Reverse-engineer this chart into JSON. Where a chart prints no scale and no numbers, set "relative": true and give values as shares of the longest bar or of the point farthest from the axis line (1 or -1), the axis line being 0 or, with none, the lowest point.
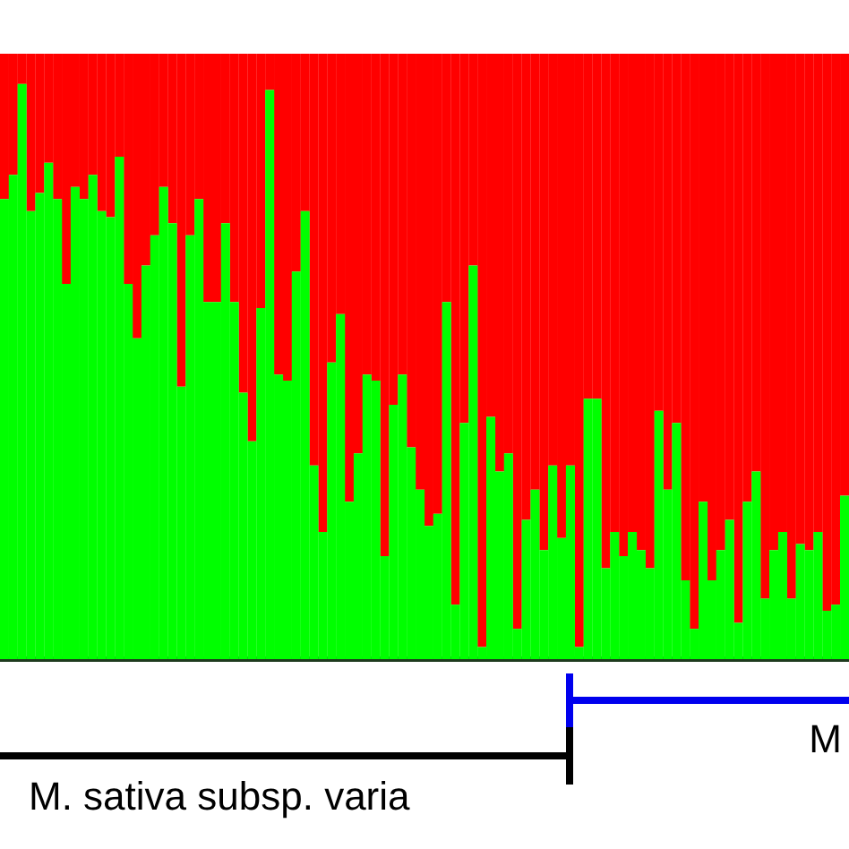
{
  "chart_data": {
    "type": "bar",
    "stacked": true,
    "relative": true,
    "tick_labels": false,
    "categories": [
      null,
      null,
      null,
      null,
      null,
      null,
      null,
      null,
      null,
      null,
      null,
      null,
      null,
      null,
      null,
      null,
      null,
      null,
      null,
      null,
      null,
      null,
      null,
      null,
      null,
      null,
      null,
      null,
      null,
      null,
      null,
      null,
      null,
      null,
      null,
      null,
      null,
      null,
      null,
      null,
      null,
      null,
      null,
      null,
      null,
      null,
      null,
      null,
      null,
      null,
      null,
      null,
      null,
      null,
      null,
      null,
      null,
      null,
      null,
      null,
      null,
      null,
      null,
      null,
      null,
      null,
      null,
      null,
      null,
      null,
      null,
      null,
      null,
      null,
      null,
      null,
      null,
      null,
      null,
      null,
      null,
      null,
      null,
      null,
      null,
      null,
      null,
      null,
      null,
      null,
      null,
      null,
      null,
      null,
      null,
      null
    ],
    "series": [
      {
        "color": "#00ff00",
        "values": [
          0.76,
          0.8,
          0.95,
          0.74,
          0.77,
          0.82,
          0.76,
          0.62,
          0.78,
          0.76,
          0.8,
          0.74,
          0.73,
          0.83,
          0.62,
          0.53,
          0.65,
          0.7,
          0.78,
          0.72,
          0.45,
          0.7,
          0.76,
          0.59,
          0.59,
          0.72,
          0.59,
          0.44,
          0.36,
          0.58,
          0.94,
          0.47,
          0.46,
          0.64,
          0.74,
          0.32,
          0.21,
          0.49,
          0.57,
          0.26,
          0.34,
          0.47,
          0.46,
          0.17,
          0.42,
          0.47,
          0.35,
          0.28,
          0.22,
          0.24,
          0.59,
          0.09,
          0.39,
          0.65,
          0.02,
          0.4,
          0.31,
          0.34,
          0.05,
          0.23,
          0.28,
          0.18,
          0.32,
          0.2,
          0.32,
          0.02,
          0.43,
          0.43,
          0.15,
          0.21,
          0.17,
          0.21,
          0.18,
          0.15,
          0.41,
          0.28,
          0.39,
          0.13,
          0.05,
          0.26,
          0.13,
          0.18,
          0.23,
          0.06,
          0.26,
          0.31,
          0.1,
          0.18,
          0.21,
          0.1,
          0.19,
          0.18,
          0.21,
          0.08,
          0.09,
          0.27
        ]
      },
      {
        "color": "#ff0000",
        "values": [
          0.24,
          0.2,
          0.05,
          0.26,
          0.23,
          0.18,
          0.24,
          0.38,
          0.22,
          0.24,
          0.2,
          0.26,
          0.27,
          0.17,
          0.38,
          0.47,
          0.35,
          0.3,
          0.22,
          0.28,
          0.55,
          0.3,
          0.24,
          0.41,
          0.41,
          0.28,
          0.41,
          0.56,
          0.64,
          0.42,
          0.06,
          0.53,
          0.54,
          0.36,
          0.26,
          0.68,
          0.79,
          0.51,
          0.43,
          0.74,
          0.66,
          0.53,
          0.54,
          0.83,
          0.58,
          0.53,
          0.65,
          0.72,
          0.78,
          0.76,
          0.41,
          0.91,
          0.61,
          0.35,
          0.98,
          0.6,
          0.69,
          0.66,
          0.95,
          0.77,
          0.72,
          0.82,
          0.68,
          0.8,
          0.68,
          0.98,
          0.57,
          0.57,
          0.85,
          0.79,
          0.83,
          0.79,
          0.82,
          0.85,
          0.59,
          0.72,
          0.61,
          0.87,
          0.95,
          0.74,
          0.87,
          0.82,
          0.77,
          0.94,
          0.74,
          0.69,
          0.9,
          0.82,
          0.79,
          0.9,
          0.81,
          0.82,
          0.79,
          0.92,
          0.91,
          0.73
        ]
      }
    ],
    "annotations": [
      "M. sativa subsp. varia",
      "M"
    ]
  }
}
